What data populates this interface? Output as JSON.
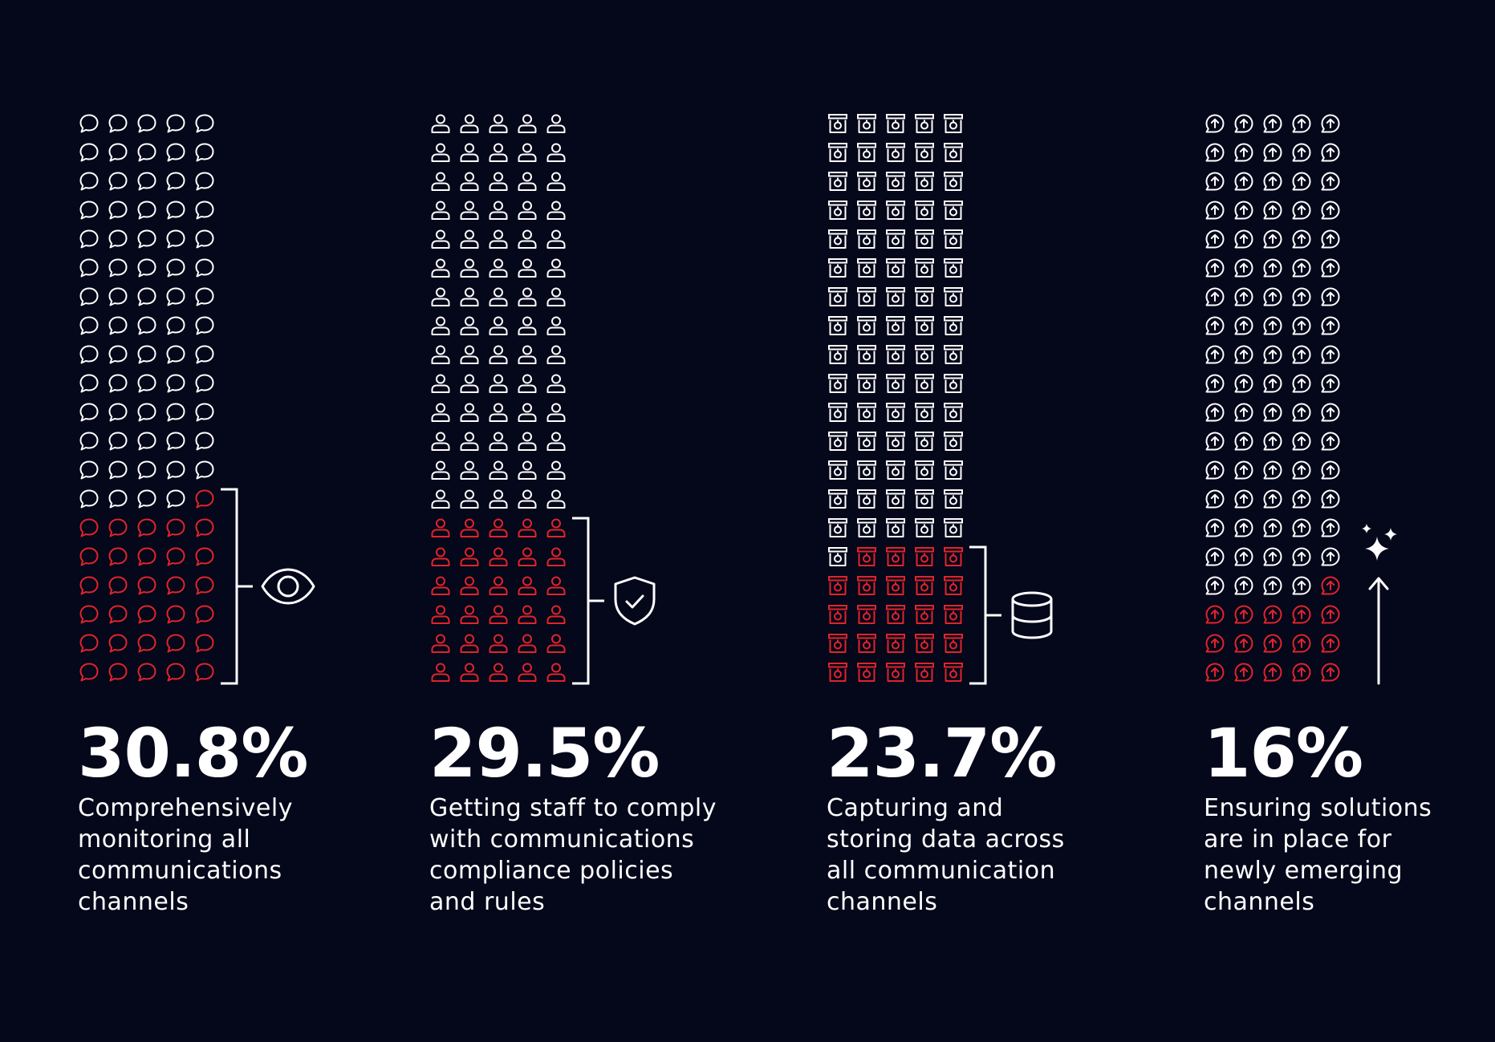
{
  "colors": {
    "background": "#05071a",
    "base_icon": "#ffffff",
    "highlight_icon": "#e0242b",
    "text": "#ffffff"
  },
  "chart_data": {
    "type": "pictograph",
    "icons_per_group": 100,
    "columns_per_group": 5,
    "groups": [
      {
        "label": "Comprehensively\nmonitoring all\ncommunications\nchannels",
        "value": 30.8,
        "display": "30.8%",
        "icon": "speech-bubble-icon",
        "marker": "eye-icon"
      },
      {
        "label": "Getting staff to comply\nwith communications\ncompliance policies\nand rules",
        "value": 29.5,
        "display": "29.5%",
        "icon": "person-icon",
        "marker": "shield-check-icon"
      },
      {
        "label": "Capturing and\nstoring data across\nall communication\nchannels",
        "value": 23.7,
        "display": "23.7%",
        "icon": "archive-box-icon",
        "marker": "database-icon"
      },
      {
        "label": "Ensuring solutions\nare in place for\nnewly emerging\nchannels",
        "value": 16,
        "display": "16%",
        "icon": "arrow-up-bubble-icon",
        "marker": "sparkle-arrow-icon"
      }
    ]
  }
}
